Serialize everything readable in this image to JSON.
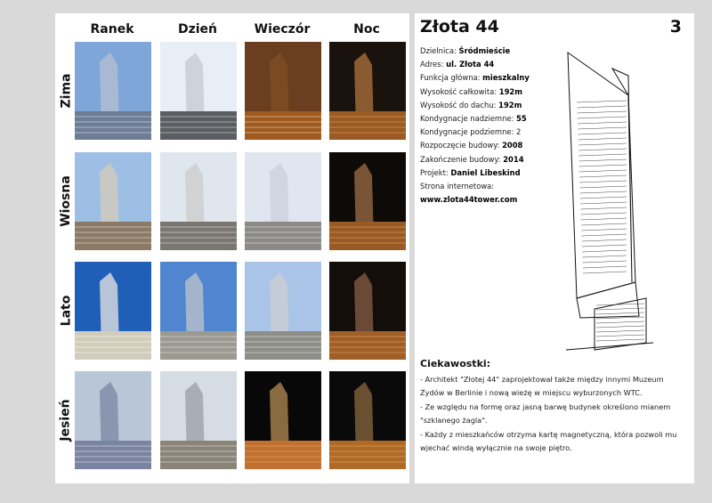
{
  "gallery": {
    "columns": [
      "Ranek",
      "Dzień",
      "Wieczór",
      "Noc"
    ],
    "rows": [
      "Zima",
      "Wiosna",
      "Lato",
      "Jesień"
    ]
  },
  "sheet": {
    "title": "Złota 44",
    "page_number": "3"
  },
  "info": {
    "district": {
      "label": "Dzielnica:",
      "value": "Śródmieście"
    },
    "address": {
      "label": "Adres:",
      "value": "ul. Złota 44"
    },
    "function": {
      "label": "Funkcja główna:",
      "value": "mieszkalny"
    },
    "total_height": {
      "label": "Wysokość całkowita:",
      "value": "192m"
    },
    "roof_height": {
      "label": "Wysokość do dachu:",
      "value": "192m"
    },
    "floors_above": {
      "label": "Kondygnacje nadziemne:",
      "value": "55"
    },
    "floors_below": {
      "label": "Kondygnacje podziemne:",
      "value": "2"
    },
    "construction_start": {
      "label": "Rozpoczęcie budowy:",
      "value": "2008"
    },
    "construction_end": {
      "label": "Zakończenie budowy:",
      "value": "2014"
    },
    "architect": {
      "label": "Projekt:",
      "value": "Daniel Libeskind"
    },
    "website": {
      "label": "Strona internetowa:",
      "value": "www.zlota44tower.com"
    }
  },
  "facts": {
    "heading": "Ciekawostki:",
    "items": [
      " - Architekt \"Złotej 44\" zaprojektował także między innymi Muzeum Żydów w Berlinie i nową wieżę w miejscu wyburzonych WTC.",
      " - Ze względu na formę oraz jasną barwę budynek określono mianem \"szklanego żagla\".",
      " - Każdy z mieszkańców otrzyma kartę magnetyczną, która pozwoli mu wjechać windą wyłącznie na swoje piętro."
    ]
  },
  "colors": {
    "background": "#d9d9d9",
    "page": "#ffffff",
    "text": "#111111"
  }
}
